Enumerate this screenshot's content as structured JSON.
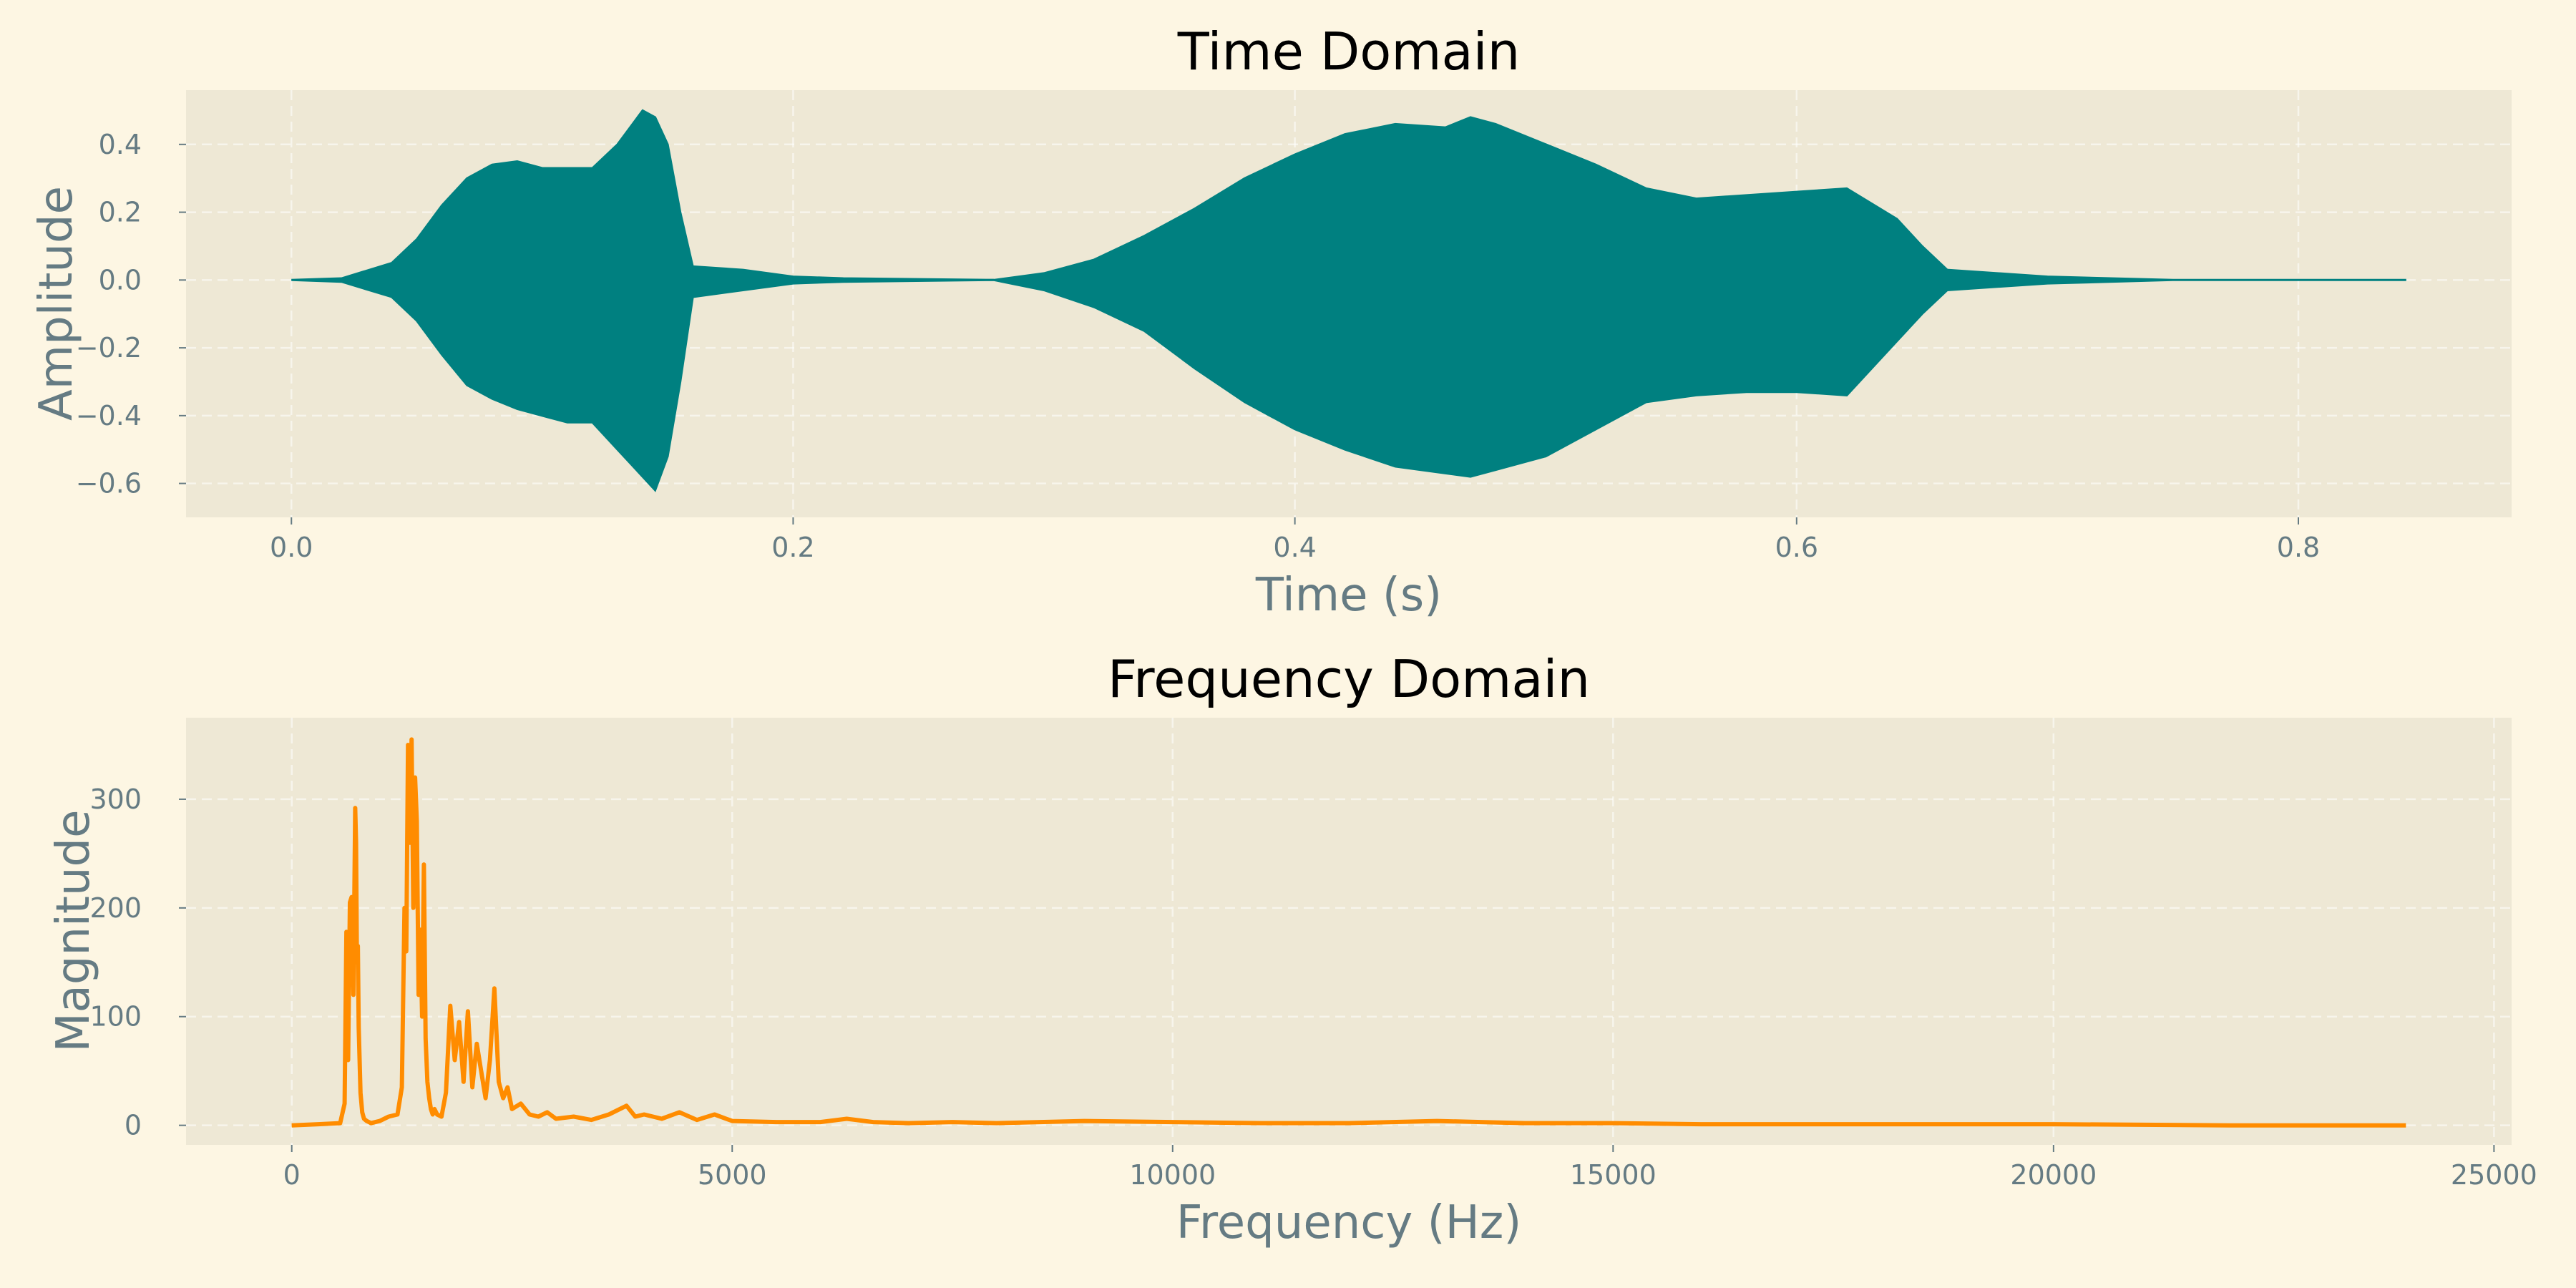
{
  "chart_data": [
    {
      "type": "line",
      "title": "Time Domain",
      "xlabel": "Time (s)",
      "ylabel": "Amplitude",
      "xlim": [
        -0.042,
        0.885
      ],
      "ylim": [
        -0.7,
        0.56
      ],
      "xticks": [
        0.0,
        0.2,
        0.4,
        0.6,
        0.8
      ],
      "xtick_labels": [
        "0.0",
        "0.2",
        "0.4",
        "0.6",
        "0.8"
      ],
      "yticks": [
        -0.6,
        -0.4,
        -0.2,
        0.0,
        0.2,
        0.4
      ],
      "ytick_labels": [
        "−0.6",
        "−0.4",
        "−0.2",
        "0.0",
        "0.2",
        "0.4"
      ],
      "grid": true,
      "color": "#008080",
      "envelope": {
        "x": [
          0.0,
          0.02,
          0.04,
          0.05,
          0.06,
          0.07,
          0.08,
          0.09,
          0.1,
          0.11,
          0.12,
          0.13,
          0.14,
          0.145,
          0.15,
          0.155,
          0.16,
          0.18,
          0.2,
          0.22,
          0.28,
          0.3,
          0.32,
          0.34,
          0.36,
          0.38,
          0.4,
          0.42,
          0.44,
          0.46,
          0.47,
          0.48,
          0.5,
          0.52,
          0.54,
          0.56,
          0.58,
          0.6,
          0.62,
          0.64,
          0.65,
          0.66,
          0.7,
          0.75,
          0.843
        ],
        "upper": [
          0.0,
          0.005,
          0.05,
          0.12,
          0.22,
          0.3,
          0.34,
          0.35,
          0.33,
          0.33,
          0.33,
          0.4,
          0.5,
          0.48,
          0.4,
          0.2,
          0.04,
          0.03,
          0.01,
          0.005,
          0.0,
          0.02,
          0.06,
          0.13,
          0.21,
          0.3,
          0.37,
          0.43,
          0.46,
          0.45,
          0.48,
          0.46,
          0.4,
          0.34,
          0.27,
          0.24,
          0.25,
          0.26,
          0.27,
          0.18,
          0.1,
          0.03,
          0.01,
          0.0,
          0.0
        ],
        "lower": [
          0.0,
          -0.005,
          -0.05,
          -0.12,
          -0.22,
          -0.31,
          -0.35,
          -0.38,
          -0.4,
          -0.42,
          -0.42,
          -0.5,
          -0.58,
          -0.62,
          -0.52,
          -0.3,
          -0.05,
          -0.03,
          -0.01,
          -0.005,
          0.0,
          -0.03,
          -0.08,
          -0.15,
          -0.26,
          -0.36,
          -0.44,
          -0.5,
          -0.55,
          -0.57,
          -0.58,
          -0.56,
          -0.52,
          -0.44,
          -0.36,
          -0.34,
          -0.33,
          -0.33,
          -0.34,
          -0.18,
          -0.1,
          -0.03,
          -0.01,
          0.0,
          0.0
        ]
      }
    },
    {
      "type": "line",
      "title": "Frequency Domain",
      "xlabel": "Frequency (Hz)",
      "ylabel": "Magnitude",
      "xlim": [
        -1200,
        25200
      ],
      "ylim": [
        -18,
        375
      ],
      "xticks": [
        0,
        5000,
        10000,
        15000,
        20000,
        25000
      ],
      "xtick_labels": [
        "0",
        "5000",
        "10000",
        "15000",
        "20000",
        "25000"
      ],
      "yticks": [
        0,
        100,
        200,
        300
      ],
      "ytick_labels": [
        "0",
        "100",
        "200",
        "300"
      ],
      "grid": true,
      "color": "#ff8c00",
      "x": [
        0,
        300,
        550,
        600,
        620,
        640,
        660,
        680,
        700,
        720,
        730,
        740,
        750,
        760,
        780,
        800,
        820,
        850,
        900,
        1000,
        1100,
        1200,
        1250,
        1280,
        1300,
        1320,
        1340,
        1360,
        1380,
        1400,
        1420,
        1440,
        1460,
        1480,
        1500,
        1520,
        1540,
        1560,
        1580,
        1600,
        1620,
        1650,
        1700,
        1750,
        1800,
        1850,
        1900,
        1950,
        2000,
        2050,
        2100,
        2150,
        2200,
        2250,
        2300,
        2350,
        2400,
        2450,
        2500,
        2600,
        2700,
        2800,
        2900,
        3000,
        3200,
        3400,
        3600,
        3800,
        3900,
        4000,
        4200,
        4400,
        4600,
        4800,
        5000,
        5500,
        6000,
        6300,
        6600,
        7000,
        7500,
        8000,
        9000,
        10000,
        11000,
        12000,
        13000,
        13500,
        14000,
        15000,
        16000,
        17000,
        18000,
        20000,
        22000,
        24000
      ],
      "y": [
        0,
        1,
        2,
        20,
        178,
        60,
        205,
        210,
        120,
        292,
        260,
        150,
        165,
        90,
        30,
        12,
        6,
        4,
        2,
        4,
        8,
        10,
        35,
        200,
        160,
        350,
        260,
        355,
        200,
        320,
        280,
        120,
        180,
        100,
        240,
        80,
        40,
        25,
        15,
        10,
        15,
        10,
        8,
        30,
        110,
        60,
        95,
        40,
        105,
        35,
        75,
        50,
        25,
        60,
        126,
        40,
        25,
        35,
        15,
        20,
        10,
        8,
        12,
        6,
        8,
        5,
        10,
        18,
        8,
        10,
        6,
        12,
        5,
        10,
        4,
        3,
        3,
        6,
        3,
        2,
        3,
        2,
        4,
        3,
        2,
        2,
        4,
        3,
        2,
        2,
        1,
        1,
        1,
        1,
        0,
        0
      ]
    }
  ]
}
